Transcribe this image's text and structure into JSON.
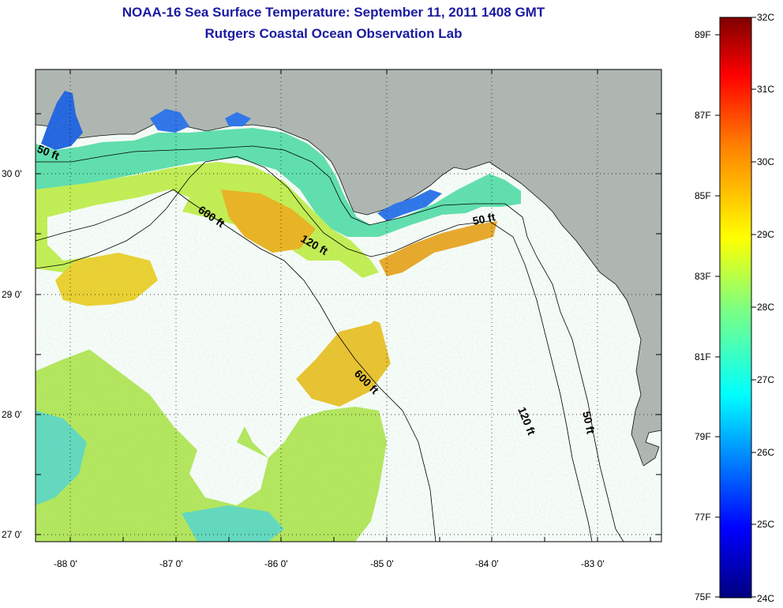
{
  "title": "NOAA-16 Sea Surface Temperature:  September 11, 2011 1408 GMT",
  "subtitle": "Rutgers Coastal Ocean Observation Lab",
  "map": {
    "lat_ticks": [
      "30 0'",
      "29 0'",
      "28 0'",
      "27 0'"
    ],
    "lon_ticks": [
      "-88 0'",
      "-87 0'",
      "-86 0'",
      "-85 0'",
      "-84 0'",
      "-83 0'"
    ],
    "contour_labels": [
      "50 ft",
      "600 ft",
      "120 ft",
      "50 ft",
      "600 ft",
      "120 ft",
      "50 ft"
    ]
  },
  "colorbar": {
    "fahrenheit": [
      "89F",
      "87F",
      "85F",
      "83F",
      "81F",
      "79F",
      "77F",
      "75F"
    ],
    "celsius": [
      "32C",
      "31C",
      "30C",
      "29C",
      "28C",
      "27C",
      "26C",
      "25C",
      "24C"
    ],
    "colors": [
      "#00007f",
      "#0000ff",
      "#007fff",
      "#00ffff",
      "#7fff7f",
      "#ffff00",
      "#ff7f00",
      "#ff0000",
      "#7f0000"
    ]
  }
}
